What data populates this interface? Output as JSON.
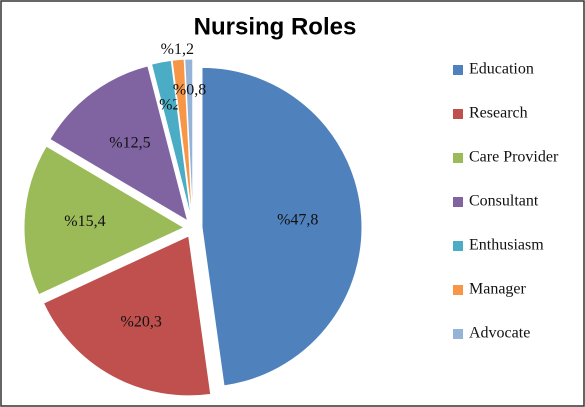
{
  "chart_data": {
    "type": "pie",
    "title": "Nursing Roles",
    "categories": [
      "Education",
      "Research",
      "Care Provider",
      "Consultant",
      "Enthusiasm",
      "Manager",
      "Advocate"
    ],
    "values": [
      47.8,
      20.3,
      15.4,
      12.5,
      2,
      1.2,
      0.8
    ],
    "value_labels": [
      "%47,8",
      "%20,3",
      "%15,4",
      "%12,5",
      "%2",
      "%1,2",
      "%0,8"
    ],
    "colors": [
      "#4f81bd",
      "#c0504d",
      "#9bbb59",
      "#8064a2",
      "#4bacc6",
      "#f79646",
      "#95b3d7"
    ],
    "legend": "right"
  }
}
